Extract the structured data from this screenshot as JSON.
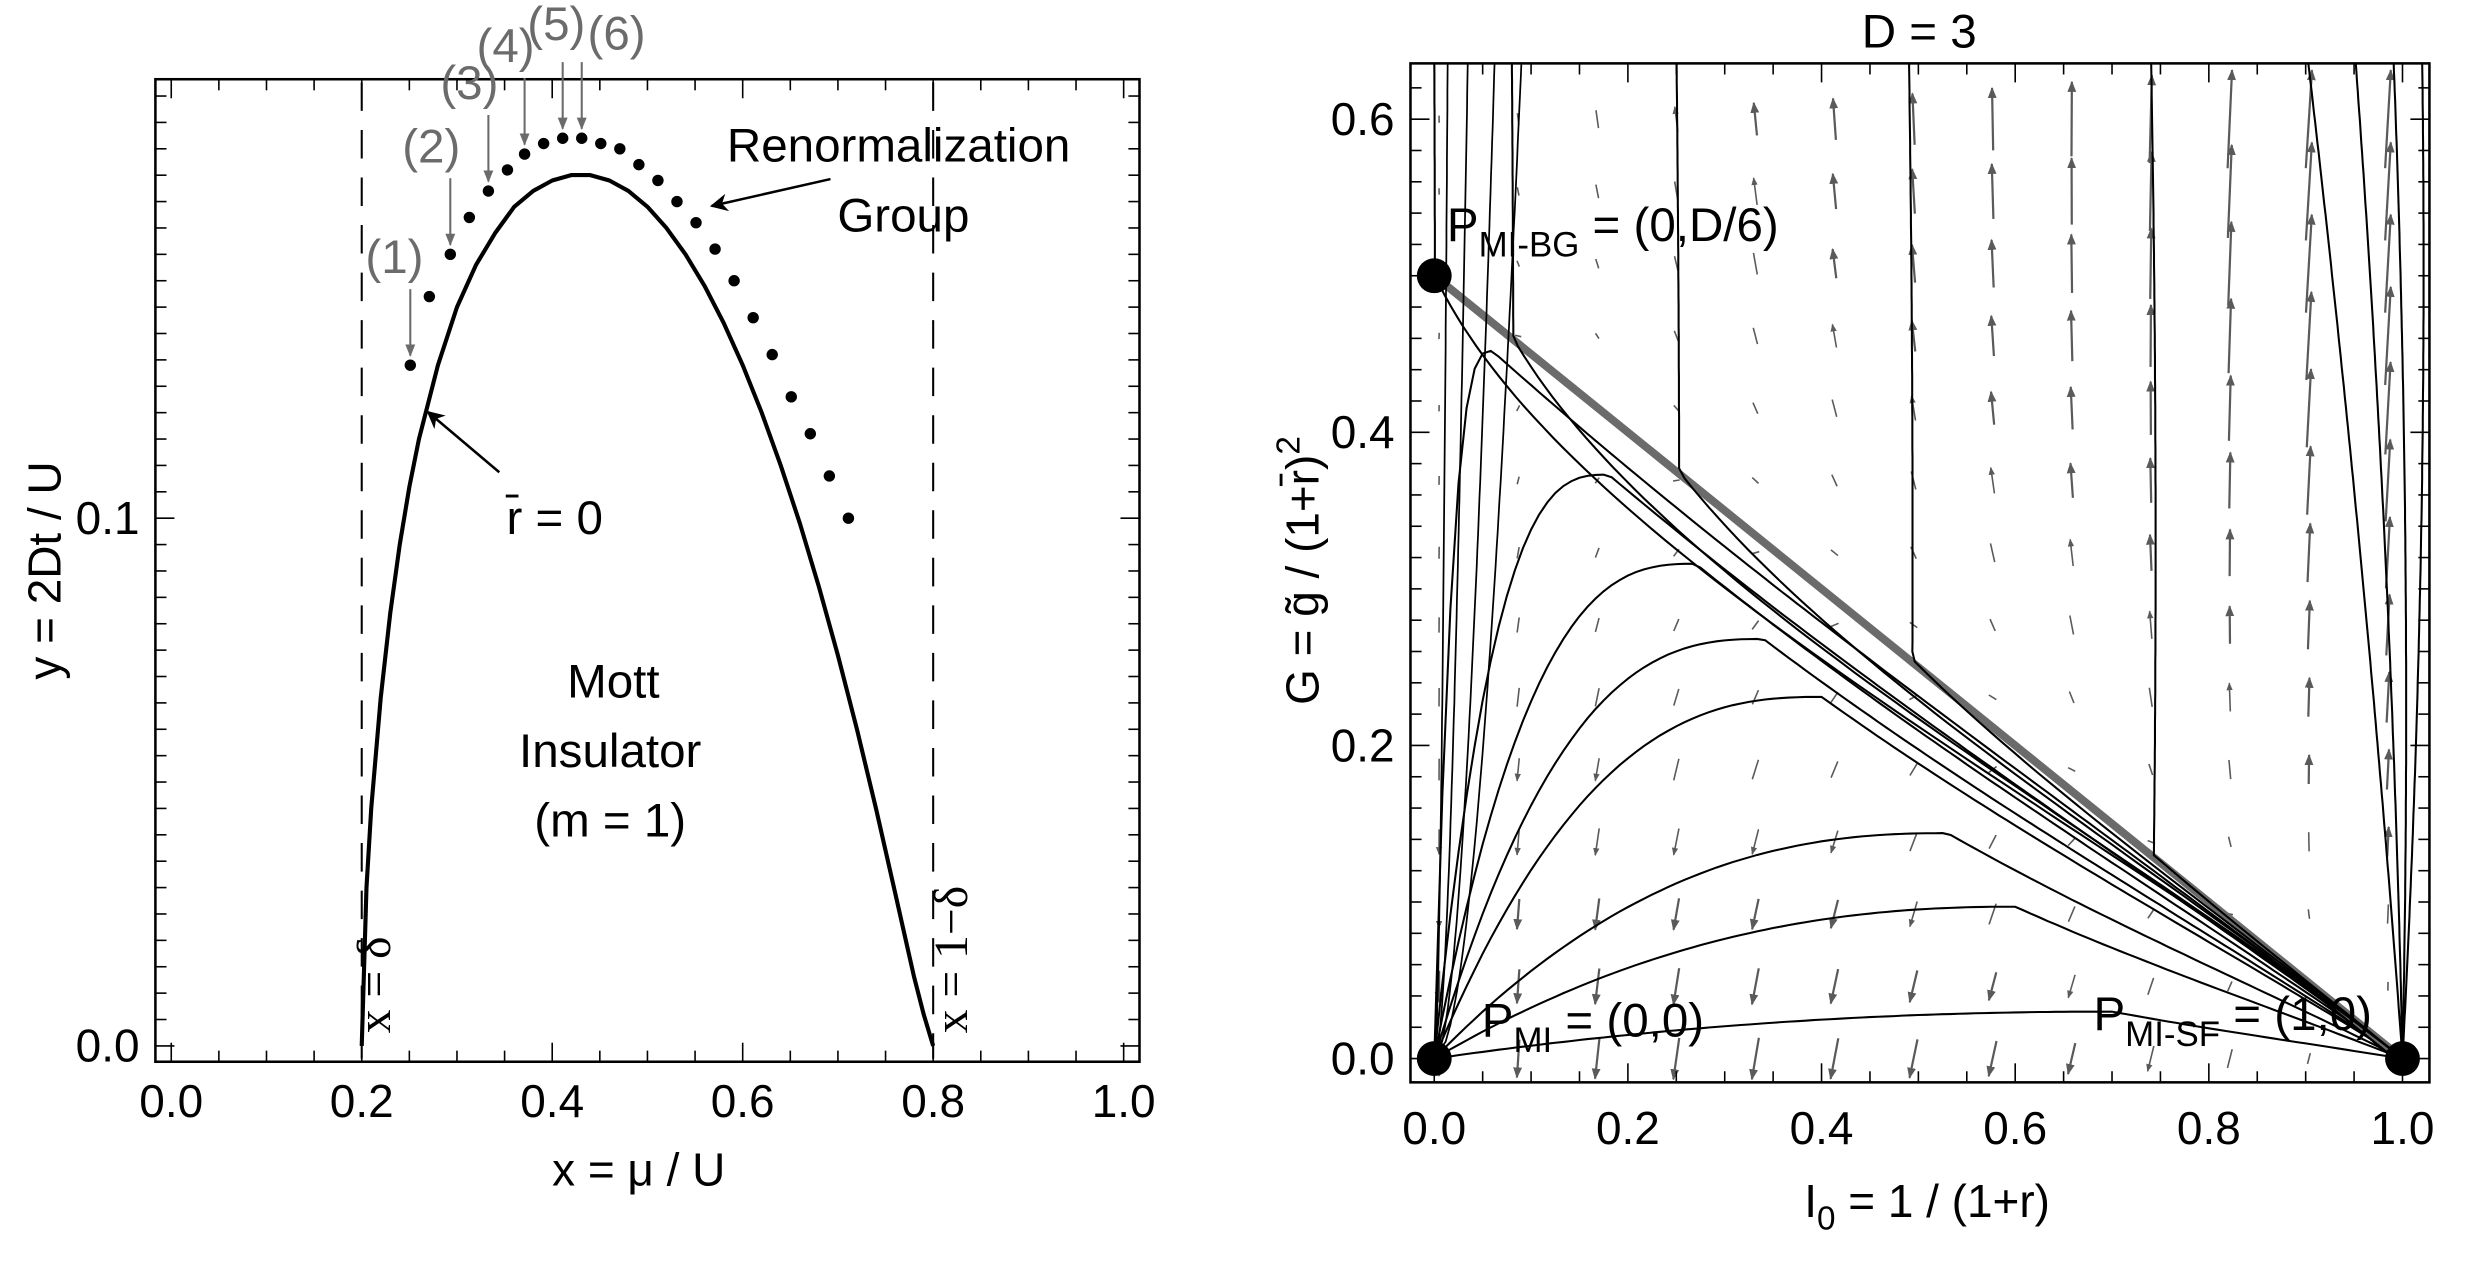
{
  "chart_data": [
    {
      "type": "line",
      "panel": "left",
      "title": "",
      "xlabel": "x = μ / U",
      "ylabel": "y = 2Dt / U",
      "xlim": [
        0.0,
        1.0
      ],
      "ylim": [
        0.0,
        0.183
      ],
      "xticks": [
        "0.0",
        "0.2",
        "0.4",
        "0.6",
        "0.8",
        "1.0"
      ],
      "xtick_values": [
        0.0,
        0.2,
        0.4,
        0.6,
        0.8,
        1.0
      ],
      "yticks": [
        "0.0",
        "0.1"
      ],
      "ytick_values": [
        0.0,
        0.1
      ],
      "grid": false,
      "series": [
        {
          "name": "r̄ = 0",
          "style": "solid",
          "x": [
            0.2,
            0.205,
            0.21,
            0.22,
            0.23,
            0.24,
            0.25,
            0.26,
            0.28,
            0.3,
            0.32,
            0.34,
            0.36,
            0.38,
            0.4,
            0.42,
            0.43,
            0.44,
            0.46,
            0.48,
            0.5,
            0.52,
            0.54,
            0.56,
            0.58,
            0.6,
            0.62,
            0.64,
            0.66,
            0.68,
            0.7,
            0.72,
            0.74,
            0.76,
            0.77,
            0.78,
            0.79,
            0.795,
            0.8
          ],
          "y": [
            0.0,
            0.03,
            0.045,
            0.066,
            0.082,
            0.095,
            0.106,
            0.115,
            0.129,
            0.14,
            0.148,
            0.154,
            0.159,
            0.162,
            0.164,
            0.165,
            0.165,
            0.165,
            0.164,
            0.162,
            0.159,
            0.155,
            0.15,
            0.144,
            0.137,
            0.129,
            0.12,
            0.11,
            0.099,
            0.087,
            0.074,
            0.06,
            0.045,
            0.029,
            0.021,
            0.013,
            0.006,
            0.003,
            0.0
          ]
        },
        {
          "name": "Renormalization Group",
          "style": "dots",
          "x": [
            0.251,
            0.271,
            0.293,
            0.313,
            0.333,
            0.353,
            0.371,
            0.391,
            0.411,
            0.431,
            0.451,
            0.471,
            0.491,
            0.511,
            0.531,
            0.551,
            0.571,
            0.591,
            0.611,
            0.631,
            0.651,
            0.671,
            0.691,
            0.711
          ],
          "y": [
            0.129,
            0.142,
            0.15,
            0.157,
            0.162,
            0.166,
            0.169,
            0.171,
            0.172,
            0.172,
            0.171,
            0.17,
            0.167,
            0.164,
            0.16,
            0.156,
            0.151,
            0.145,
            0.138,
            0.131,
            0.123,
            0.116,
            0.108,
            0.1
          ]
        }
      ],
      "vlines": [
        {
          "x": 0.2,
          "style": "dashed",
          "label": "x = δ"
        },
        {
          "x": 0.8,
          "style": "dashed",
          "label": "x = 1−δ"
        }
      ],
      "point_markers": [
        {
          "label": "(1)",
          "point_index": 0
        },
        {
          "label": "(2)",
          "point_index": 2
        },
        {
          "label": "(3)",
          "point_index": 4
        },
        {
          "label": "(4)",
          "point_index": 6
        },
        {
          "label": "(5)",
          "point_index": 8
        },
        {
          "label": "(6)",
          "point_index": 9
        }
      ],
      "annotations": [
        {
          "text": "Renormalization",
          "line2": "Group",
          "arrow_to": "dots"
        },
        {
          "text": "r̄ = 0",
          "arrow_to": "solid-curve"
        },
        {
          "text": "Mott",
          "line2": "Insulator",
          "line3": "(m = 1)"
        }
      ]
    },
    {
      "type": "line",
      "panel": "right",
      "subtype": "flow-diagram",
      "title": "D = 3",
      "xlabel": "I₀ = 1 / (1+r)",
      "ylabel": "G = g̃ / (1+r̄)²",
      "xlim": [
        -0.02,
        1.03
      ],
      "ylim": [
        -0.01,
        0.632
      ],
      "xticks": [
        "0.0",
        "0.2",
        "0.4",
        "0.6",
        "0.8",
        "1.0"
      ],
      "xtick_values": [
        0.0,
        0.2,
        0.4,
        0.6,
        0.8,
        1.0
      ],
      "yticks": [
        "0.0",
        "0.2",
        "0.4",
        "0.6"
      ],
      "ytick_values": [
        0.0,
        0.2,
        0.4,
        0.6
      ],
      "grid": false,
      "fixed_points": [
        {
          "name": "P_MI-BG",
          "label_main": "P",
          "label_sub": "MI-BG",
          "label_tail": " = (0,D/6)",
          "x": 0.0,
          "y": 0.5
        },
        {
          "name": "P_MI",
          "label_main": "P",
          "label_sub": "MI",
          "label_tail": " = (0,0)",
          "x": 0.0,
          "y": 0.0
        },
        {
          "name": "P_MI-SF",
          "label_main": "P",
          "label_sub": "MI-SF",
          "label_tail": " = (1,0)",
          "x": 1.0,
          "y": 0.0
        }
      ],
      "separatrix": {
        "from": [
          0.0,
          0.5
        ],
        "to": [
          1.0,
          0.0
        ],
        "color": "#6b6b6b"
      },
      "streamlines_lower": [
        {
          "peak_x": 0.06,
          "peak_y": 0.452
        },
        {
          "peak_x": 0.18,
          "peak_y": 0.373
        },
        {
          "peak_x": 0.27,
          "peak_y": 0.316
        },
        {
          "peak_x": 0.34,
          "peak_y": 0.268
        },
        {
          "peak_x": 0.4,
          "peak_y": 0.231
        },
        {
          "peak_x": 0.53,
          "peak_y": 0.144
        },
        {
          "peak_x": 0.6,
          "peak_y": 0.097
        },
        {
          "peak_x": 0.7,
          "peak_y": 0.03
        }
      ],
      "streamlines_upper_top_x": [
        0.0,
        0.08,
        0.25,
        0.49,
        0.74,
        0.9,
        0.95,
        0.99,
        1.02
      ],
      "vector_field": {
        "color": "#5a5a5a",
        "grid_x_count": 13,
        "grid_y_count": 14
      }
    }
  ]
}
